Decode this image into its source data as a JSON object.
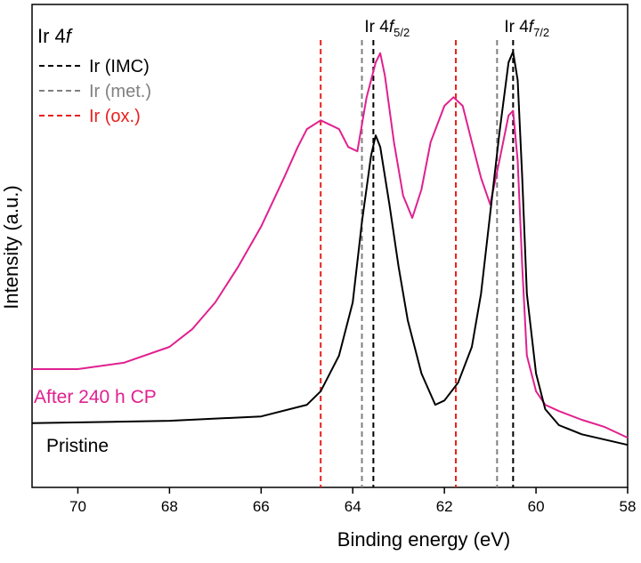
{
  "chart_data": {
    "type": "line",
    "panel_label": {
      "text": "Ir 4",
      "italic": "f"
    },
    "x_label": "Binding energy (eV)",
    "y_label": "Intensity (a.u.)",
    "xlim": [
      71,
      58
    ],
    "xticks": [
      70,
      68,
      66,
      64,
      62,
      60,
      58
    ],
    "ylim": [
      0,
      100
    ],
    "series": [
      {
        "name": "After 240 h CP",
        "color": "#e0208f",
        "x": [
          71,
          70,
          69,
          68,
          67.5,
          67,
          66.5,
          66,
          65.5,
          65.2,
          65,
          64.7,
          64.5,
          64.3,
          64.1,
          63.9,
          63.7,
          63.5,
          63.4,
          63.3,
          63.1,
          62.9,
          62.7,
          62.5,
          62.3,
          62,
          61.8,
          61.6,
          61.4,
          61.2,
          61,
          60.8,
          60.6,
          60.5,
          60.4,
          60.3,
          60.2,
          60,
          59.8,
          59.5,
          59,
          58.5,
          58
        ],
        "values": [
          24.5,
          24.5,
          25.8,
          29.1,
          32.8,
          38.3,
          45.7,
          54,
          64.1,
          70.5,
          74.2,
          76,
          75.1,
          74.2,
          70.5,
          69.6,
          80.7,
          88,
          89.9,
          85.3,
          71.5,
          60.4,
          55.8,
          61.7,
          71.5,
          79,
          80.8,
          79,
          71.5,
          64.1,
          58.6,
          67.6,
          77,
          78,
          67.6,
          45.7,
          27.3,
          19.9,
          17.1,
          15.8,
          14,
          12.5,
          10.3
        ]
      },
      {
        "name": "Pristine",
        "color": "#000000",
        "x": [
          71,
          68,
          66,
          65,
          64.7,
          64.3,
          64,
          63.8,
          63.6,
          63.5,
          63.4,
          63.2,
          63,
          62.8,
          62.5,
          62.2,
          62,
          61.7,
          61.4,
          61.2,
          61,
          60.8,
          60.6,
          60.5,
          60.4,
          60.3,
          60.2,
          60,
          59.8,
          59.5,
          59,
          58
        ],
        "values": [
          13.3,
          13.8,
          14.7,
          17.1,
          19.9,
          27.3,
          38.3,
          54.9,
          68.7,
          72.9,
          70.5,
          58.6,
          45.7,
          34.6,
          23.6,
          17.1,
          18,
          21.7,
          29.1,
          40.1,
          56.7,
          73.3,
          88,
          90.2,
          84.3,
          64.1,
          40.1,
          23.6,
          16.2,
          12.9,
          11,
          8.8
        ]
      }
    ],
    "reference_lines": [
      {
        "name": "Ir (IMC)",
        "color": "#000000",
        "x": [
          63.55,
          60.5
        ]
      },
      {
        "name": "Ir (met.)",
        "color": "#808080",
        "x": [
          63.8,
          60.85
        ]
      },
      {
        "name": "Ir (ox.)",
        "color": "#e8201c",
        "x": [
          64.7,
          61.75
        ]
      }
    ],
    "peak_labels": [
      {
        "text": "Ir 4",
        "italic": "f",
        "sub": "5/2",
        "x": 63.55
      },
      {
        "text": "Ir 4",
        "italic": "f",
        "sub": "7/2",
        "x": 60.5
      }
    ]
  }
}
